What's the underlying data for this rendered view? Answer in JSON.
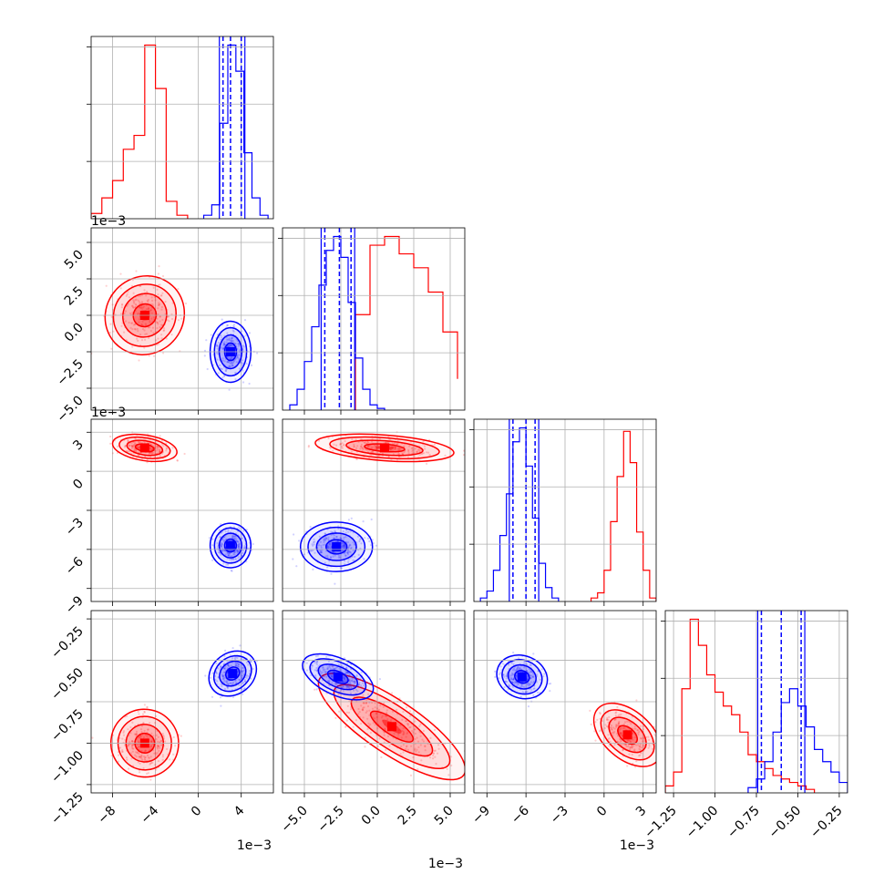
{
  "chart_data": {
    "type": "corner",
    "parameters": [
      {
        "name": "",
        "range": [
          -10.0,
          7.0
        ],
        "ticks": [
          -8,
          -4,
          0,
          4
        ],
        "tick_labels": [
          "−8",
          "−4",
          "0",
          "4"
        ],
        "scale_label": "1e−3"
      },
      {
        "name": "",
        "range": [
          -6.5,
          6.0
        ],
        "ticks": [
          -5.0,
          -2.5,
          0.0,
          2.5,
          5.0
        ],
        "tick_labels": [
          "−5.0",
          "−2.5",
          "0.0",
          "2.5",
          "5.0"
        ],
        "scale_label": "1e−3"
      },
      {
        "name": "",
        "range": [
          -10.0,
          4.0
        ],
        "ticks": [
          -9,
          -6,
          -3,
          0,
          3
        ],
        "tick_labels": [
          "−9",
          "−6",
          "−3",
          "0",
          "3"
        ],
        "scale_label": "1e−3"
      },
      {
        "name": "",
        "range": [
          -1.3,
          -0.2
        ],
        "ticks": [
          -1.25,
          -1.0,
          -0.75,
          -0.5,
          -0.25
        ],
        "tick_labels": [
          "−1.25",
          "−1.00",
          "−0.75",
          "−0.50",
          "−0.25"
        ],
        "scale_label": ""
      }
    ],
    "series": [
      {
        "color": "#ff0000",
        "histograms": [
          {
            "edges": [
              -10,
              -9,
              -8,
              -7,
              -6,
              -5,
              -4,
              -3,
              -2,
              -1
            ],
            "counts": [
              3,
              12,
              22,
              40,
              48,
              100,
              75,
              10,
              2
            ]
          },
          {
            "edges": [
              -1.5,
              -0.5,
              0.5,
              1.5,
              2.5,
              3.5,
              4.5,
              5.5
            ],
            "counts": [
              55,
              95,
              100,
              90,
              82,
              68,
              45,
              18
            ]
          },
          {
            "edges": [
              -1.0,
              -0.5,
              0.0,
              0.5,
              1.0,
              1.5,
              2.0,
              2.5,
              3.0,
              3.5,
              4.0
            ],
            "counts": [
              2,
              5,
              18,
              46,
              72,
              98,
              80,
              40,
              18,
              2
            ]
          },
          {
            "edges": [
              -1.3,
              -1.25,
              -1.2,
              -1.15,
              -1.1,
              -1.05,
              -1.0,
              -0.95,
              -0.9,
              -0.85,
              -0.8,
              -0.75,
              -0.7,
              -0.65,
              -0.6,
              -0.55,
              -0.5,
              -0.45,
              -0.4
            ],
            "counts": [
              4,
              12,
              60,
              100,
              85,
              68,
              58,
              50,
              45,
              35,
              22,
              18,
              14,
              10,
              8,
              6,
              4,
              2
            ]
          }
        ],
        "contours": [
          {
            "x": -5.0,
            "y": 0.0,
            "sx": 1.6,
            "sy": 1.9,
            "rho": 0.55
          },
          {
            "x": -5.0,
            "y": 1.8,
            "sx": 1.4,
            "sy": 0.6,
            "rho": -0.3
          },
          {
            "x": 0.5,
            "y": 1.8,
            "sx": 2.2,
            "sy": 0.6,
            "rho": -0.3
          },
          {
            "x": -5.0,
            "y": -1.0,
            "sx": 1.3,
            "sy": 0.16,
            "rho": -0.65
          },
          {
            "x": 1.0,
            "y": -0.9,
            "sx": 2.3,
            "sy": 0.16,
            "rho": -0.85
          },
          {
            "x": 1.8,
            "y": -0.95,
            "sx": 0.8,
            "sy": 0.16,
            "rho": 0.45
          }
        ]
      },
      {
        "color": "#0000ff",
        "histograms": [
          {
            "edges": [
              0.5,
              1.25,
              2.0,
              2.75,
              3.5,
              4.25,
              5.0,
              5.75,
              6.5
            ],
            "counts": [
              2,
              8,
              55,
              100,
              85,
              38,
              12,
              2
            ]
          },
          {
            "edges": [
              -6.0,
              -5.5,
              -5.0,
              -4.5,
              -4.0,
              -3.5,
              -3.0,
              -2.5,
              -2.0,
              -1.5,
              -1.0,
              -0.5,
              0.0,
              0.5
            ],
            "counts": [
              3,
              12,
              28,
              48,
              72,
              92,
              100,
              88,
              62,
              30,
              12,
              3,
              1
            ]
          },
          {
            "edges": [
              -9.5,
              -9.0,
              -8.5,
              -8.0,
              -7.5,
              -7.0,
              -6.5,
              -6.0,
              -5.5,
              -5.0,
              -4.5,
              -4.0,
              -3.5
            ],
            "counts": [
              2,
              6,
              18,
              38,
              62,
              92,
              100,
              78,
              48,
              22,
              8,
              2
            ]
          },
          {
            "edges": [
              -0.8,
              -0.75,
              -0.7,
              -0.65,
              -0.6,
              -0.55,
              -0.5,
              -0.45,
              -0.4,
              -0.35,
              -0.3,
              -0.25,
              -0.2
            ],
            "counts": [
              3,
              8,
              18,
              35,
              52,
              60,
              50,
              38,
              25,
              18,
              12,
              6
            ]
          }
        ],
        "quantiles": [
          [
            2.3,
            3.0,
            4.0
          ],
          [
            -3.6,
            -2.6,
            -1.8
          ],
          [
            -7.0,
            -6.0,
            -5.3
          ],
          [
            -0.72,
            -0.6,
            -0.48
          ]
        ],
        "contours": [
          {
            "x": 3.0,
            "y": -2.5,
            "sx": 1.0,
            "sy": 1.1,
            "rho": 0.0
          },
          {
            "x": 3.0,
            "y": -5.7,
            "sx": 1.0,
            "sy": 0.9,
            "rho": 0.0
          },
          {
            "x": -2.8,
            "y": -5.8,
            "sx": 1.3,
            "sy": 1.0,
            "rho": 0.0
          },
          {
            "x": 3.2,
            "y": -0.58,
            "sx": 1.0,
            "sy": 0.09,
            "rho": 0.55
          },
          {
            "x": -2.7,
            "y": -0.6,
            "sx": 1.1,
            "sy": 0.08,
            "rho": -0.55
          },
          {
            "x": -6.3,
            "y": -0.6,
            "sx": 0.9,
            "sy": 0.08,
            "rho": -0.35
          }
        ]
      }
    ],
    "grid": true
  }
}
